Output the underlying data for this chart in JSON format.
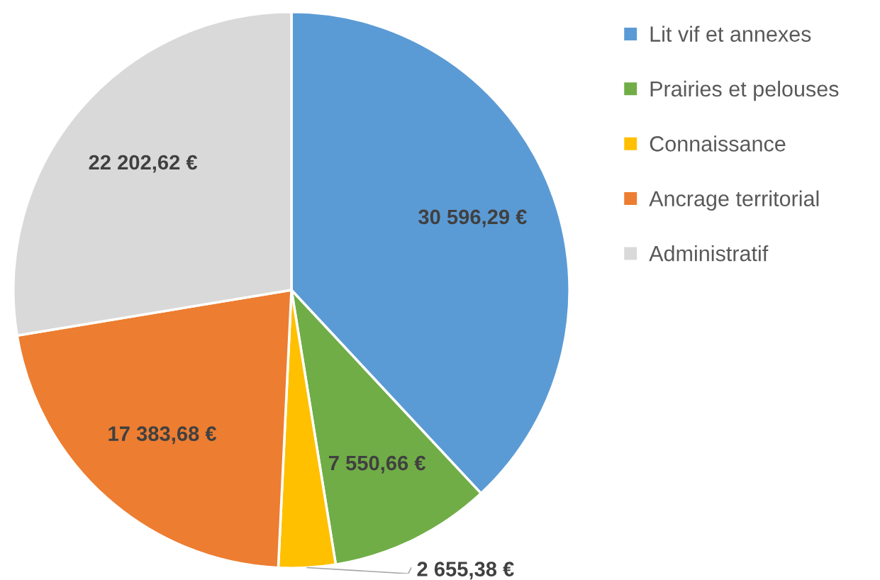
{
  "chart_data": {
    "type": "pie",
    "categories": [
      "Lit vif et annexes",
      "Prairies et pelouses",
      "Connaissance",
      "Ancrage territorial",
      "Administratif"
    ],
    "values": [
      30596.29,
      7550.66,
      2655.38,
      17383.68,
      22202.62
    ],
    "value_labels": [
      "30 596,29 €",
      "7 550,66 €",
      "2 655,38 €",
      "17 383,68 €",
      "22 202,62 €"
    ],
    "colors": [
      "#5b9bd5",
      "#70ad47",
      "#ffc000",
      "#ed7d31",
      "#d9d9d9"
    ],
    "legend": "right"
  }
}
